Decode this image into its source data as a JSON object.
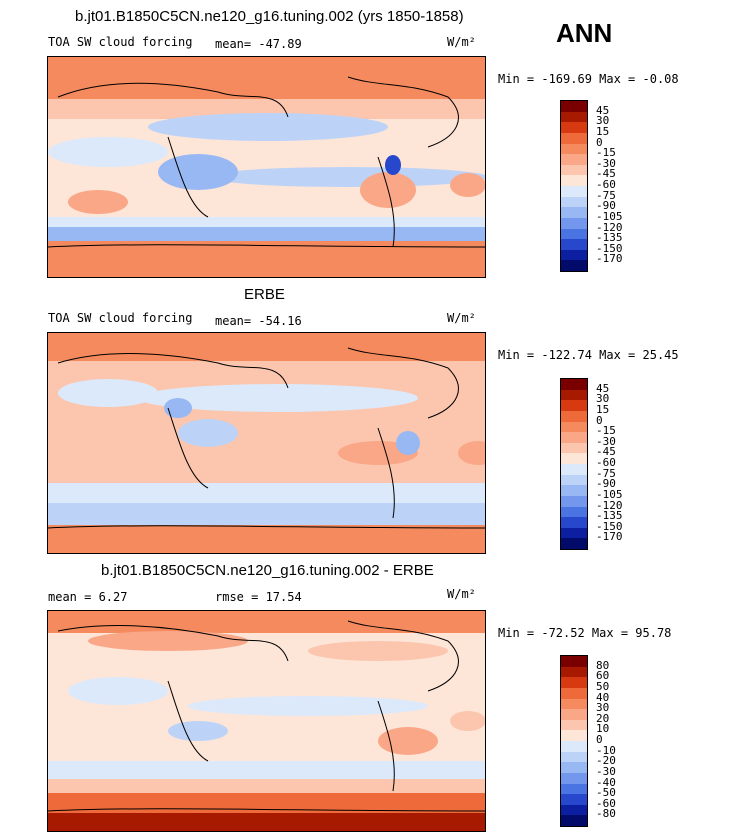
{
  "season": "ANN",
  "units": "W/m²",
  "panels": [
    {
      "title": "b.jt01.B1850C5CN.ne120_g16.tuning.002 (yrs 1850-1858)",
      "field": "TOA SW cloud forcing",
      "stat1": "mean= -47.89",
      "stat2": "",
      "minmax": "Min = -169.69 Max =  -0.08",
      "legend": [
        "45",
        "30",
        "15",
        "0",
        "-15",
        "-30",
        "-45",
        "-60",
        "-75",
        "-90",
        "-105",
        "-120",
        "-135",
        "-150",
        "-170"
      ],
      "colors": [
        "#7a0000",
        "#a81a00",
        "#d73a10",
        "#ee6a3a",
        "#f58a5e",
        "#f9a787",
        "#fcc6ae",
        "#fde5d8",
        "#dce9fb",
        "#bcd3f7",
        "#98b8f3",
        "#7297ec",
        "#4b74e3",
        "#2747cc",
        "#0b1fa0",
        "#020a6a"
      ]
    },
    {
      "title": "ERBE",
      "field": "TOA SW cloud forcing",
      "stat1": "mean= -54.16",
      "stat2": "",
      "minmax": "Min = -122.74 Max =  25.45",
      "legend": [
        "45",
        "30",
        "15",
        "0",
        "-15",
        "-30",
        "-45",
        "-60",
        "-75",
        "-90",
        "-105",
        "-120",
        "-135",
        "-150",
        "-170"
      ],
      "colors": [
        "#7a0000",
        "#a81a00",
        "#d73a10",
        "#ee6a3a",
        "#f58a5e",
        "#f9a787",
        "#fcc6ae",
        "#fde5d8",
        "#dce9fb",
        "#bcd3f7",
        "#98b8f3",
        "#7297ec",
        "#4b74e3",
        "#2747cc",
        "#0b1fa0",
        "#020a6a"
      ]
    },
    {
      "title": "b.jt01.B1850C5CN.ne120_g16.tuning.002 - ERBE",
      "field": "",
      "stat1": "mean =   6.27",
      "stat2": "rmse =  17.54",
      "minmax": "Min = -72.52 Max =  95.78",
      "legend": [
        "80",
        "60",
        "50",
        "40",
        "30",
        "20",
        "10",
        "0",
        "-10",
        "-20",
        "-30",
        "-40",
        "-50",
        "-60",
        "-80"
      ],
      "colors": [
        "#7a0000",
        "#a81a00",
        "#d73a10",
        "#ee6a3a",
        "#f58a5e",
        "#f9a787",
        "#fcc6ae",
        "#fde5d8",
        "#dce9fb",
        "#bcd3f7",
        "#98b8f3",
        "#7297ec",
        "#4b74e3",
        "#2747cc",
        "#0b1fa0",
        "#020a6a"
      ]
    }
  ]
}
